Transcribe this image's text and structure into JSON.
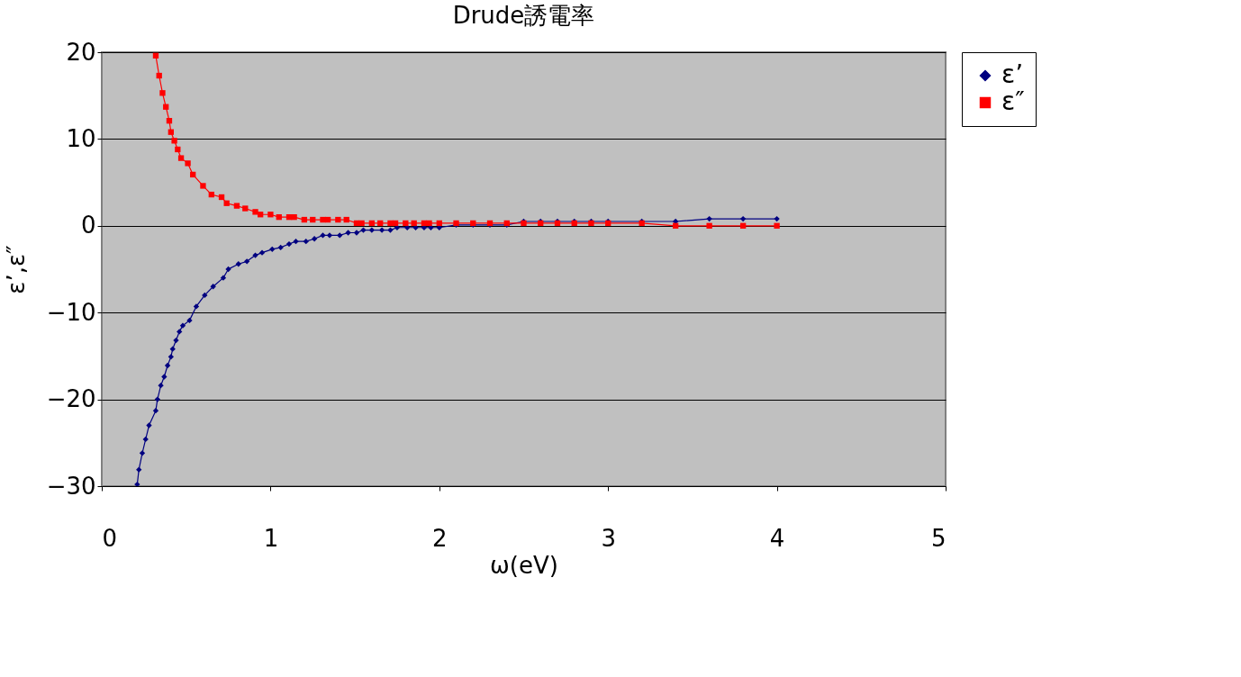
{
  "chart_data": {
    "type": "line",
    "title": "Drude誘電率",
    "xlabel": "ω(eV)",
    "ylabel": "ε’,ε″",
    "xlim": [
      0,
      5
    ],
    "xticks": [
      0,
      1,
      2,
      3,
      4,
      5
    ],
    "ylim": [
      -30,
      20
    ],
    "yticks": [
      -30,
      -20,
      -10,
      0,
      10,
      20
    ],
    "grid": "y",
    "legend": "right",
    "line_style": "solid",
    "series": [
      {
        "name": "ε’",
        "color": "#000080",
        "marker": "diamond",
        "x": [
          0.21,
          0.22,
          0.24,
          0.26,
          0.28,
          0.32,
          0.33,
          0.35,
          0.37,
          0.39,
          0.41,
          0.42,
          0.44,
          0.46,
          0.48,
          0.52,
          0.56,
          0.61,
          0.66,
          0.72,
          0.75,
          0.81,
          0.86,
          0.91,
          0.95,
          1.01,
          1.06,
          1.11,
          1.15,
          1.21,
          1.26,
          1.31,
          1.35,
          1.41,
          1.46,
          1.51,
          1.55,
          1.6,
          1.66,
          1.71,
          1.75,
          1.81,
          1.86,
          1.91,
          1.95,
          2.0,
          2.1,
          2.2,
          2.3,
          2.4,
          2.5,
          2.6,
          2.7,
          2.8,
          2.9,
          3.0,
          3.2,
          3.4,
          3.6,
          3.8,
          4.0
        ],
        "values": [
          -29.8,
          -28.1,
          -26.2,
          -24.6,
          -23.0,
          -21.3,
          -20.0,
          -18.4,
          -17.4,
          -16.1,
          -15.1,
          -14.2,
          -13.2,
          -12.2,
          -11.5,
          -10.9,
          -9.3,
          -8.0,
          -7.0,
          -6.0,
          -5.0,
          -4.4,
          -4.1,
          -3.4,
          -3.1,
          -2.7,
          -2.5,
          -2.1,
          -1.8,
          -1.8,
          -1.5,
          -1.1,
          -1.1,
          -1.1,
          -0.8,
          -0.8,
          -0.5,
          -0.5,
          -0.5,
          -0.5,
          -0.2,
          -0.2,
          -0.2,
          -0.2,
          -0.2,
          -0.2,
          0.1,
          0.1,
          0.1,
          0.1,
          0.5,
          0.5,
          0.5,
          0.5,
          0.5,
          0.5,
          0.5,
          0.5,
          0.8,
          0.8,
          0.8
        ]
      },
      {
        "name": "ε″",
        "color": "#ff0000",
        "marker": "square",
        "x": [
          0.32,
          0.34,
          0.36,
          0.38,
          0.4,
          0.41,
          0.43,
          0.45,
          0.47,
          0.51,
          0.54,
          0.6,
          0.65,
          0.71,
          0.74,
          0.8,
          0.85,
          0.91,
          0.94,
          1.0,
          1.05,
          1.11,
          1.14,
          1.2,
          1.25,
          1.31,
          1.34,
          1.4,
          1.45,
          1.51,
          1.54,
          1.6,
          1.65,
          1.71,
          1.74,
          1.8,
          1.85,
          1.91,
          1.94,
          2.0,
          2.1,
          2.2,
          2.3,
          2.4,
          2.5,
          2.6,
          2.7,
          2.8,
          2.9,
          3.0,
          3.2,
          3.4,
          3.6,
          3.8,
          4.0
        ],
        "values": [
          19.6,
          17.3,
          15.3,
          13.7,
          12.1,
          10.8,
          9.8,
          8.8,
          7.8,
          7.2,
          5.9,
          4.6,
          3.6,
          3.3,
          2.6,
          2.3,
          2.0,
          1.6,
          1.3,
          1.3,
          1.0,
          1.0,
          1.0,
          0.7,
          0.7,
          0.7,
          0.7,
          0.7,
          0.7,
          0.3,
          0.3,
          0.3,
          0.3,
          0.3,
          0.3,
          0.3,
          0.3,
          0.3,
          0.3,
          0.3,
          0.3,
          0.3,
          0.3,
          0.3,
          0.3,
          0.3,
          0.3,
          0.3,
          0.3,
          0.3,
          0.3,
          0.0,
          0.0,
          0.0,
          0.0
        ]
      }
    ]
  }
}
